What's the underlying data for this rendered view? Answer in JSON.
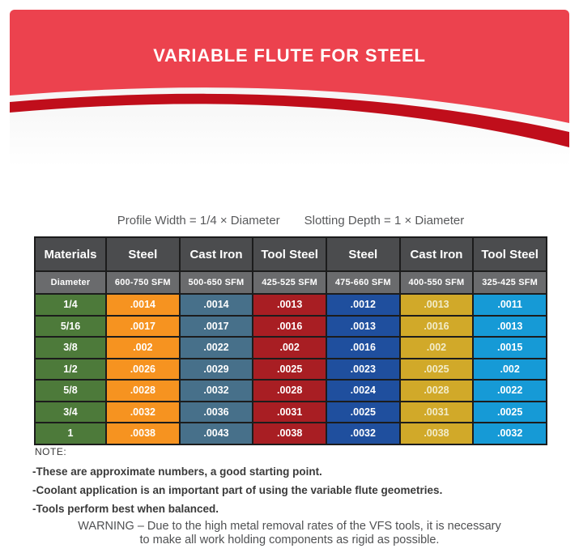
{
  "banner": {
    "title": "VARIABLE FLUTE FOR STEEL",
    "red": "#ec424e",
    "stripe_red": "#c00e1b"
  },
  "caption": {
    "profile_width": "Profile Width = 1/4 × Diameter",
    "slotting_depth": "Slotting Depth = 1 × Diameter"
  },
  "table": {
    "header_materials": [
      "Materials",
      "Steel",
      "Cast Iron",
      "Tool Steel",
      "Steel",
      "Cast Iron",
      "Tool Steel"
    ],
    "header_speeds": [
      "Diameter",
      "600-750 SFM",
      "500-650 SFM",
      "425-525 SFM",
      "475-660 SFM",
      "400-550 SFM",
      "325-425 SFM"
    ],
    "column_colors": [
      "#4d7a3a",
      "#f69320",
      "#47708a",
      "#a81e23",
      "#1f4f9e",
      "#d1a929",
      "#169ad6"
    ],
    "column_text_colors": [
      "#ffffff",
      "#ffffff",
      "#ffffff",
      "#ffffff",
      "#ffffff",
      "#f2ecca",
      "#ffffff"
    ],
    "header_colors": {
      "row1_bg": "#4b4c4e",
      "row2_bg": "#6a6b6d"
    },
    "rows": [
      {
        "diameter": "1/4",
        "values": [
          ".0014",
          ".0014",
          ".0013",
          ".0012",
          ".0013",
          ".0011"
        ]
      },
      {
        "diameter": "5/16",
        "values": [
          ".0017",
          ".0017",
          ".0016",
          ".0013",
          ".0016",
          ".0013"
        ]
      },
      {
        "diameter": "3/8",
        "values": [
          ".002",
          ".0022",
          ".002",
          ".0016",
          ".002",
          ".0015"
        ]
      },
      {
        "diameter": "1/2",
        "values": [
          ".0026",
          ".0029",
          ".0025",
          ".0023",
          ".0025",
          ".002"
        ]
      },
      {
        "diameter": "5/8",
        "values": [
          ".0028",
          ".0032",
          ".0028",
          ".0024",
          ".0028",
          ".0022"
        ]
      },
      {
        "diameter": "3/4",
        "values": [
          ".0032",
          ".0036",
          ".0031",
          ".0025",
          ".0031",
          ".0025"
        ]
      },
      {
        "diameter": "1",
        "values": [
          ".0038",
          ".0043",
          ".0038",
          ".0032",
          ".0038",
          ".0032"
        ]
      }
    ]
  },
  "notes": {
    "label": "NOTE:",
    "items": [
      "-These are approximate numbers, a good starting point.",
      "-Coolant application is an important part of using the variable flute geometries.",
      "-Tools perform best when balanced."
    ]
  },
  "warning": {
    "line1": "WARNING – Due to the high metal removal rates of the VFS tools, it is necessary",
    "line2": "to make all work holding components as rigid as possible."
  }
}
